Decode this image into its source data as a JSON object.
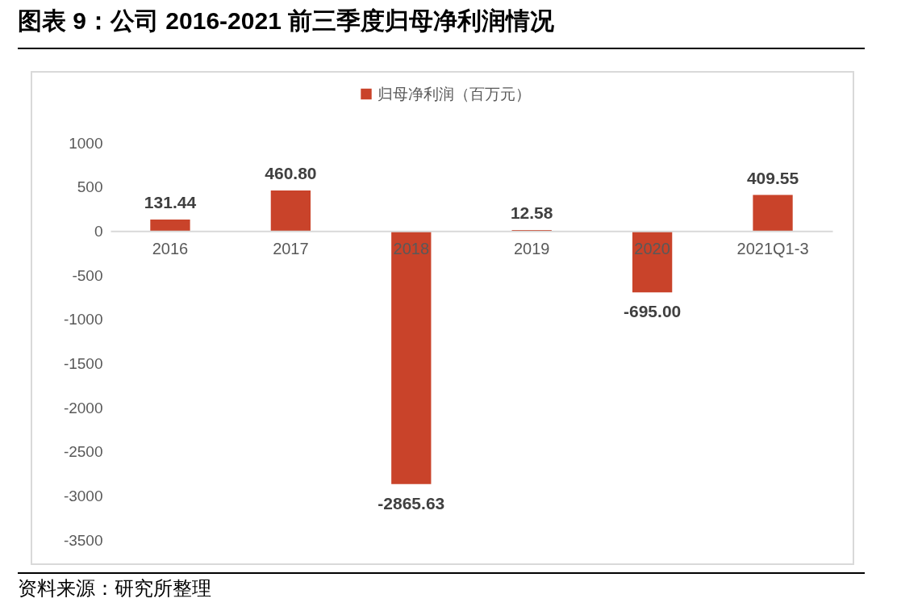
{
  "chart_data": {
    "type": "bar",
    "title": "图表 9：公司 2016-2021 前三季度归母净利润情况",
    "categories": [
      "2016",
      "2017",
      "2018",
      "2019",
      "2020",
      "2021Q1-3"
    ],
    "series": [
      {
        "name": "归母净利润（百万元）",
        "color": "#c9432a",
        "values": [
          131.44,
          460.8,
          -2865.63,
          12.58,
          -695.0,
          409.55
        ],
        "value_labels": [
          "131.44",
          "460.80",
          "-2865.63",
          "12.58",
          "-695.00",
          "409.55"
        ]
      }
    ],
    "ylim": [
      -3500,
      1000
    ],
    "yticks": [
      -3500,
      -3000,
      -2500,
      -2000,
      -1500,
      -1000,
      -500,
      0,
      500,
      1000
    ],
    "grid": false,
    "legend": "top",
    "annotations": [
      "资料来源：研究所整理"
    ]
  }
}
